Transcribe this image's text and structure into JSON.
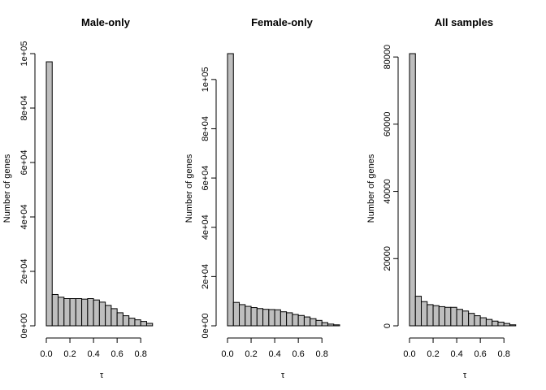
{
  "chart_data": [
    {
      "type": "bar",
      "title": "Male-only",
      "xlabel": "τ",
      "ylabel": "Number of genes",
      "bin_width": 0.05,
      "bin_starts": [
        0.0,
        0.05,
        0.1,
        0.15,
        0.2,
        0.25,
        0.3,
        0.35,
        0.4,
        0.45,
        0.5,
        0.55,
        0.6,
        0.65,
        0.7,
        0.75,
        0.8,
        0.85,
        0.9
      ],
      "values": [
        97000,
        11500,
        10500,
        10000,
        10000,
        10000,
        9800,
        10000,
        9500,
        8700,
        7500,
        6300,
        4800,
        3700,
        2800,
        2200,
        1600,
        900,
        0
      ],
      "xlim": [
        0.0,
        0.95
      ],
      "ylim": [
        0,
        100000
      ],
      "x_ticks": [
        0.0,
        0.2,
        0.4,
        0.6,
        0.8
      ],
      "x_tick_labels": [
        "0.0",
        "0.2",
        "0.4",
        "0.6",
        "0.8"
      ],
      "y_ticks": [
        0,
        20000,
        40000,
        60000,
        80000,
        100000
      ],
      "y_tick_labels": [
        "0e+00",
        "2e+04",
        "4e+04",
        "6e+04",
        "8e+04",
        "1e+05"
      ]
    },
    {
      "type": "bar",
      "title": "Female-only",
      "xlabel": "τ",
      "ylabel": "Number of genes",
      "bin_width": 0.05,
      "bin_starts": [
        0.0,
        0.05,
        0.1,
        0.15,
        0.2,
        0.25,
        0.3,
        0.35,
        0.4,
        0.45,
        0.5,
        0.55,
        0.6,
        0.65,
        0.7,
        0.75,
        0.8,
        0.85,
        0.9
      ],
      "values": [
        110500,
        9500,
        8600,
        7900,
        7400,
        7000,
        6700,
        6600,
        6500,
        5700,
        5300,
        4600,
        4200,
        3600,
        2900,
        2200,
        1300,
        700,
        400
      ],
      "xlim": [
        0.0,
        0.95
      ],
      "ylim": [
        0,
        110500
      ],
      "x_ticks": [
        0.0,
        0.2,
        0.4,
        0.6,
        0.8
      ],
      "x_tick_labels": [
        "0.0",
        "0.2",
        "0.4",
        "0.6",
        "0.8"
      ],
      "y_ticks": [
        0,
        20000,
        40000,
        60000,
        80000,
        100000
      ],
      "y_tick_labels": [
        "0e+00",
        "2e+04",
        "4e+04",
        "6e+04",
        "8e+04",
        "1e+05"
      ]
    },
    {
      "type": "bar",
      "title": "All samples",
      "xlabel": "τ",
      "ylabel": "Number of genes",
      "bin_width": 0.05,
      "bin_starts": [
        0.0,
        0.05,
        0.1,
        0.15,
        0.2,
        0.25,
        0.3,
        0.35,
        0.4,
        0.45,
        0.5,
        0.55,
        0.6,
        0.65,
        0.7,
        0.75,
        0.8,
        0.85,
        0.9
      ],
      "values": [
        81000,
        8800,
        7200,
        6300,
        6000,
        5700,
        5500,
        5500,
        4900,
        4400,
        3700,
        3000,
        2400,
        1900,
        1400,
        1100,
        700,
        300,
        0
      ],
      "xlim": [
        0.0,
        0.95
      ],
      "ylim": [
        0,
        81000
      ],
      "x_ticks": [
        0.0,
        0.2,
        0.4,
        0.6,
        0.8
      ],
      "x_tick_labels": [
        "0.0",
        "0.2",
        "0.4",
        "0.6",
        "0.8"
      ],
      "y_ticks": [
        0,
        20000,
        40000,
        60000,
        80000
      ],
      "y_tick_labels": [
        "0",
        "20000",
        "40000",
        "60000",
        "80000"
      ]
    }
  ]
}
